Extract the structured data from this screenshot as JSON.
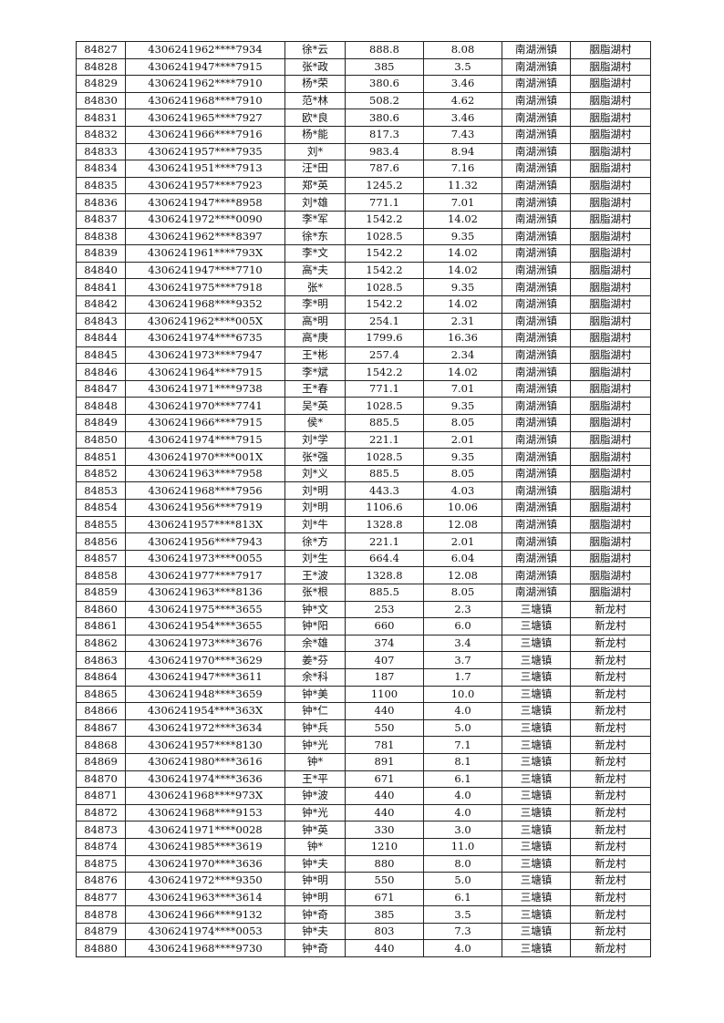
{
  "table": {
    "rows": [
      [
        "84827",
        "4306241962****7934",
        "徐*云",
        "888.8",
        "8.08",
        "南湖洲镇",
        "胭脂湖村"
      ],
      [
        "84828",
        "4306241947****7915",
        "张*政",
        "385",
        "3.5",
        "南湖洲镇",
        "胭脂湖村"
      ],
      [
        "84829",
        "4306241962****7910",
        "杨*荣",
        "380.6",
        "3.46",
        "南湖洲镇",
        "胭脂湖村"
      ],
      [
        "84830",
        "4306241968****7910",
        "范*林",
        "508.2",
        "4.62",
        "南湖洲镇",
        "胭脂湖村"
      ],
      [
        "84831",
        "4306241965****7927",
        "欧*良",
        "380.6",
        "3.46",
        "南湖洲镇",
        "胭脂湖村"
      ],
      [
        "84832",
        "4306241966****7916",
        "杨*能",
        "817.3",
        "7.43",
        "南湖洲镇",
        "胭脂湖村"
      ],
      [
        "84833",
        "4306241957****7935",
        "刘*",
        "983.4",
        "8.94",
        "南湖洲镇",
        "胭脂湖村"
      ],
      [
        "84834",
        "4306241951****7913",
        "汪*田",
        "787.6",
        "7.16",
        "南湖洲镇",
        "胭脂湖村"
      ],
      [
        "84835",
        "4306241957****7923",
        "郑*英",
        "1245.2",
        "11.32",
        "南湖洲镇",
        "胭脂湖村"
      ],
      [
        "84836",
        "4306241947****8958",
        "刘*雄",
        "771.1",
        "7.01",
        "南湖洲镇",
        "胭脂湖村"
      ],
      [
        "84837",
        "4306241972****0090",
        "李*军",
        "1542.2",
        "14.02",
        "南湖洲镇",
        "胭脂湖村"
      ],
      [
        "84838",
        "4306241962****8397",
        "徐*东",
        "1028.5",
        "9.35",
        "南湖洲镇",
        "胭脂湖村"
      ],
      [
        "84839",
        "4306241961****793X",
        "李*文",
        "1542.2",
        "14.02",
        "南湖洲镇",
        "胭脂湖村"
      ],
      [
        "84840",
        "4306241947****7710",
        "高*夫",
        "1542.2",
        "14.02",
        "南湖洲镇",
        "胭脂湖村"
      ],
      [
        "84841",
        "4306241975****7918",
        "张*",
        "1028.5",
        "9.35",
        "南湖洲镇",
        "胭脂湖村"
      ],
      [
        "84842",
        "4306241968****9352",
        "李*明",
        "1542.2",
        "14.02",
        "南湖洲镇",
        "胭脂湖村"
      ],
      [
        "84843",
        "4306241962****005X",
        "高*明",
        "254.1",
        "2.31",
        "南湖洲镇",
        "胭脂湖村"
      ],
      [
        "84844",
        "4306241974****6735",
        "高*庚",
        "1799.6",
        "16.36",
        "南湖洲镇",
        "胭脂湖村"
      ],
      [
        "84845",
        "4306241973****7947",
        "王*彬",
        "257.4",
        "2.34",
        "南湖洲镇",
        "胭脂湖村"
      ],
      [
        "84846",
        "4306241964****7915",
        "李*斌",
        "1542.2",
        "14.02",
        "南湖洲镇",
        "胭脂湖村"
      ],
      [
        "84847",
        "4306241971****9738",
        "王*春",
        "771.1",
        "7.01",
        "南湖洲镇",
        "胭脂湖村"
      ],
      [
        "84848",
        "4306241970****7741",
        "吴*英",
        "1028.5",
        "9.35",
        "南湖洲镇",
        "胭脂湖村"
      ],
      [
        "84849",
        "4306241966****7915",
        "侯*",
        "885.5",
        "8.05",
        "南湖洲镇",
        "胭脂湖村"
      ],
      [
        "84850",
        "4306241974****7915",
        "刘*学",
        "221.1",
        "2.01",
        "南湖洲镇",
        "胭脂湖村"
      ],
      [
        "84851",
        "4306241970****001X",
        "张*强",
        "1028.5",
        "9.35",
        "南湖洲镇",
        "胭脂湖村"
      ],
      [
        "84852",
        "4306241963****7958",
        "刘*义",
        "885.5",
        "8.05",
        "南湖洲镇",
        "胭脂湖村"
      ],
      [
        "84853",
        "4306241968****7956",
        "刘*明",
        "443.3",
        "4.03",
        "南湖洲镇",
        "胭脂湖村"
      ],
      [
        "84854",
        "4306241956****7919",
        "刘*明",
        "1106.6",
        "10.06",
        "南湖洲镇",
        "胭脂湖村"
      ],
      [
        "84855",
        "4306241957****813X",
        "刘*牛",
        "1328.8",
        "12.08",
        "南湖洲镇",
        "胭脂湖村"
      ],
      [
        "84856",
        "4306241956****7943",
        "徐*方",
        "221.1",
        "2.01",
        "南湖洲镇",
        "胭脂湖村"
      ],
      [
        "84857",
        "4306241973****0055",
        "刘*生",
        "664.4",
        "6.04",
        "南湖洲镇",
        "胭脂湖村"
      ],
      [
        "84858",
        "4306241977****7917",
        "王*波",
        "1328.8",
        "12.08",
        "南湖洲镇",
        "胭脂湖村"
      ],
      [
        "84859",
        "4306241963****8136",
        "张*根",
        "885.5",
        "8.05",
        "南湖洲镇",
        "胭脂湖村"
      ],
      [
        "84860",
        "4306241975****3655",
        "钟*文",
        "253",
        "2.3",
        "三塘镇",
        "新龙村"
      ],
      [
        "84861",
        "4306241954****3655",
        "钟*阳",
        "660",
        "6.0",
        "三塘镇",
        "新龙村"
      ],
      [
        "84862",
        "4306241973****3676",
        "余*雄",
        "374",
        "3.4",
        "三塘镇",
        "新龙村"
      ],
      [
        "84863",
        "4306241970****3629",
        "姜*芬",
        "407",
        "3.7",
        "三塘镇",
        "新龙村"
      ],
      [
        "84864",
        "4306241947****3611",
        "余*科",
        "187",
        "1.7",
        "三塘镇",
        "新龙村"
      ],
      [
        "84865",
        "4306241948****3659",
        "钟*美",
        "1100",
        "10.0",
        "三塘镇",
        "新龙村"
      ],
      [
        "84866",
        "4306241954****363X",
        "钟*仁",
        "440",
        "4.0",
        "三塘镇",
        "新龙村"
      ],
      [
        "84867",
        "4306241972****3634",
        "钟*兵",
        "550",
        "5.0",
        "三塘镇",
        "新龙村"
      ],
      [
        "84868",
        "4306241957****8130",
        "钟*光",
        "781",
        "7.1",
        "三塘镇",
        "新龙村"
      ],
      [
        "84869",
        "4306241980****3616",
        "钟*",
        "891",
        "8.1",
        "三塘镇",
        "新龙村"
      ],
      [
        "84870",
        "4306241974****3636",
        "王*平",
        "671",
        "6.1",
        "三塘镇",
        "新龙村"
      ],
      [
        "84871",
        "4306241968****973X",
        "钟*波",
        "440",
        "4.0",
        "三塘镇",
        "新龙村"
      ],
      [
        "84872",
        "4306241968****9153",
        "钟*光",
        "440",
        "4.0",
        "三塘镇",
        "新龙村"
      ],
      [
        "84873",
        "4306241971****0028",
        "钟*英",
        "330",
        "3.0",
        "三塘镇",
        "新龙村"
      ],
      [
        "84874",
        "4306241985****3619",
        "钟*",
        "1210",
        "11.0",
        "三塘镇",
        "新龙村"
      ],
      [
        "84875",
        "4306241970****3636",
        "钟*夫",
        "880",
        "8.0",
        "三塘镇",
        "新龙村"
      ],
      [
        "84876",
        "4306241972****9350",
        "钟*明",
        "550",
        "5.0",
        "三塘镇",
        "新龙村"
      ],
      [
        "84877",
        "4306241963****3614",
        "钟*明",
        "671",
        "6.1",
        "三塘镇",
        "新龙村"
      ],
      [
        "84878",
        "4306241966****9132",
        "钟*奇",
        "385",
        "3.5",
        "三塘镇",
        "新龙村"
      ],
      [
        "84879",
        "4306241974****0053",
        "钟*夫",
        "803",
        "7.3",
        "三塘镇",
        "新龙村"
      ],
      [
        "84880",
        "4306241968****9730",
        "钟*奇",
        "440",
        "4.0",
        "三塘镇",
        "新龙村"
      ]
    ]
  }
}
